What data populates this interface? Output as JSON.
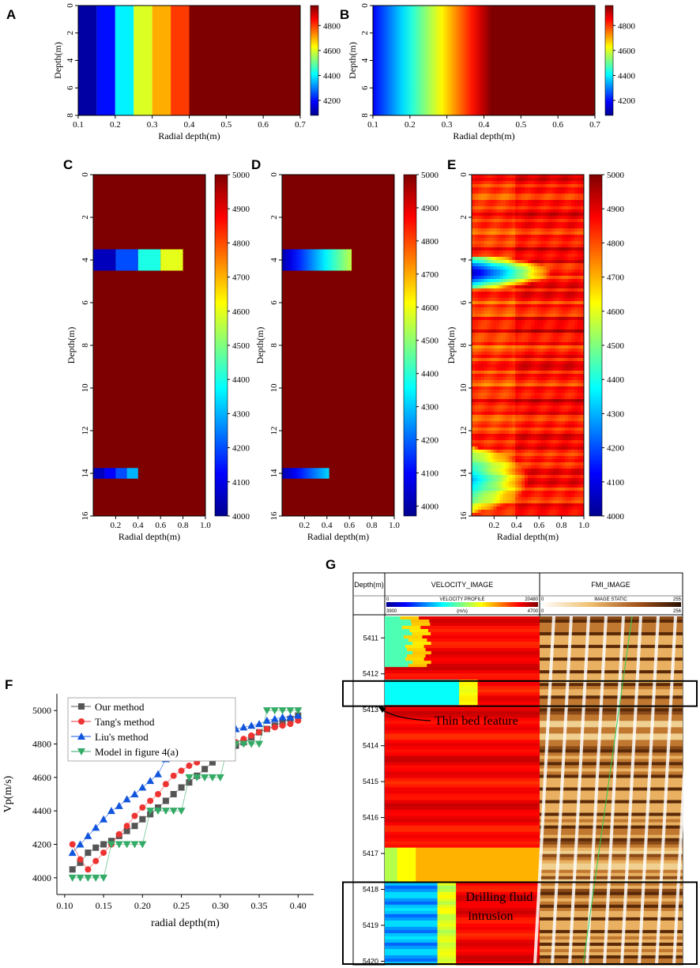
{
  "chart_data": [
    {
      "id": "A",
      "type": "heatmap",
      "panel_label": "A",
      "xlabel": "Radial depth(m)",
      "ylabel": "Depth(m)",
      "xlim": [
        0.1,
        0.7
      ],
      "ylim": [
        0,
        8
      ],
      "xticks": [
        "0.1",
        "0.2",
        "0.3",
        "0.4",
        "0.5",
        "0.6",
        "0.7"
      ],
      "yticks": [
        "0",
        "2",
        "4",
        "6",
        "8"
      ],
      "colorbar_range": [
        4080,
        4960
      ],
      "colorbar_ticks": [
        "4200",
        "4400",
        "4600",
        "4800"
      ],
      "description": "Stepped radial velocity bands",
      "bands": [
        {
          "x0": 0.1,
          "x1": 0.15,
          "value": 4100
        },
        {
          "x0": 0.15,
          "x1": 0.2,
          "value": 4200
        },
        {
          "x0": 0.2,
          "x1": 0.25,
          "value": 4400
        },
        {
          "x0": 0.25,
          "x1": 0.3,
          "value": 4600
        },
        {
          "x0": 0.3,
          "x1": 0.35,
          "value": 4700
        },
        {
          "x0": 0.35,
          "x1": 0.4,
          "value": 4800
        },
        {
          "x0": 0.4,
          "x1": 0.7,
          "value": 4960
        }
      ]
    },
    {
      "id": "B",
      "type": "heatmap",
      "panel_label": "B",
      "xlabel": "Radial depth(m)",
      "ylabel": "Depth(m)",
      "xlim": [
        0.1,
        0.7
      ],
      "ylim": [
        0,
        8
      ],
      "xticks": [
        "0.1",
        "0.2",
        "0.3",
        "0.4",
        "0.5",
        "0.6",
        "0.7"
      ],
      "yticks": [
        "0",
        "2",
        "4",
        "6",
        "8"
      ],
      "colorbar_range": [
        4080,
        4960
      ],
      "colorbar_ticks": [
        "4200",
        "4400",
        "4600",
        "4800"
      ],
      "description": "Smooth radial velocity gradient",
      "gradient_start": 0.1,
      "gradient_end": 0.42
    },
    {
      "id": "C",
      "type": "heatmap",
      "panel_label": "C",
      "xlabel": "Radial depth(m)",
      "ylabel": "Depth(m)",
      "xlim": [
        0,
        1.0
      ],
      "ylim": [
        0,
        16
      ],
      "xticks": [
        "0.2",
        "0.4",
        "0.6",
        "0.8",
        "1.0"
      ],
      "yticks": [
        "0",
        "2",
        "4",
        "6",
        "8",
        "10",
        "12",
        "14",
        "16"
      ],
      "colorbar_range": [
        4000,
        5000
      ],
      "colorbar_ticks": [
        "4000",
        "4100",
        "4200",
        "4300",
        "4400",
        "4500",
        "4600",
        "4700",
        "4800",
        "4900",
        "5000"
      ],
      "blocks": [
        {
          "x0": 0.0,
          "x1": 0.2,
          "y0": 3.5,
          "y1": 4.5,
          "value": 4050
        },
        {
          "x0": 0.2,
          "x1": 0.4,
          "y0": 3.5,
          "y1": 4.5,
          "value": 4200
        },
        {
          "x0": 0.4,
          "x1": 0.6,
          "y0": 3.5,
          "y1": 4.5,
          "value": 4400
        },
        {
          "x0": 0.6,
          "x1": 0.8,
          "y0": 3.5,
          "y1": 4.5,
          "value": 4600
        },
        {
          "x0": 0.0,
          "x1": 0.1,
          "y0": 13.75,
          "y1": 14.25,
          "value": 4050
        },
        {
          "x0": 0.1,
          "x1": 0.2,
          "y0": 13.75,
          "y1": 14.25,
          "value": 4120
        },
        {
          "x0": 0.2,
          "x1": 0.3,
          "y0": 13.75,
          "y1": 14.25,
          "value": 4200
        },
        {
          "x0": 0.3,
          "x1": 0.4,
          "y0": 13.75,
          "y1": 14.25,
          "value": 4300
        }
      ]
    },
    {
      "id": "D",
      "type": "heatmap",
      "panel_label": "D",
      "xlabel": "Radial depth(m)",
      "ylabel": "Depth(m)",
      "xlim": [
        0,
        1.0
      ],
      "ylim": [
        0,
        16
      ],
      "xticks": [
        "0.2",
        "0.4",
        "0.6",
        "0.8",
        "1.0"
      ],
      "yticks": [
        "0",
        "2",
        "4",
        "6",
        "8",
        "10",
        "12",
        "14",
        "16"
      ],
      "colorbar_range": [
        3970,
        5000
      ],
      "colorbar_ticks": [
        "4000",
        "4100",
        "4200",
        "4300",
        "4400",
        "4500",
        "4600",
        "4700",
        "4800",
        "4900",
        "5000"
      ],
      "gradient_bands": [
        {
          "x0": 0.0,
          "x1": 0.62,
          "y0": 3.5,
          "y1": 4.5,
          "v0": 4000,
          "v1": 4550
        },
        {
          "x0": 0.0,
          "x1": 0.42,
          "y0": 13.75,
          "y1": 14.25,
          "v0": 4000,
          "v1": 4320
        }
      ]
    },
    {
      "id": "E",
      "type": "heatmap",
      "panel_label": "E",
      "xlabel": "Radial depth(m)",
      "ylabel": "Depth(m)",
      "xlim": [
        0,
        1.0
      ],
      "ylim": [
        0,
        16
      ],
      "xticks": [
        "0.2",
        "0.4",
        "0.6",
        "0.8",
        "1.0"
      ],
      "yticks": [
        "0",
        "2",
        "4",
        "6",
        "8",
        "10",
        "12",
        "14",
        "16"
      ],
      "colorbar_range": [
        4000,
        5000
      ],
      "colorbar_ticks": [
        "4000",
        "4100",
        "4200",
        "4300",
        "4400",
        "4500",
        "4600",
        "4700",
        "4800",
        "4900",
        "5000"
      ],
      "anomalies": [
        {
          "center_depth": 4.6,
          "half_thickness": 0.8,
          "radial_extent": 0.7,
          "min_value": 4020
        },
        {
          "center_depth": 14.3,
          "half_thickness": 1.5,
          "radial_extent": 0.5,
          "min_value": 4300
        }
      ]
    },
    {
      "id": "F",
      "type": "line",
      "panel_label": "F",
      "xlabel": "radial depth(m)",
      "ylabel": "Vp(m/s)",
      "xlim": [
        0.09,
        0.42
      ],
      "ylim": [
        3900,
        5100
      ],
      "xticks": [
        0.1,
        0.15,
        0.2,
        0.25,
        0.3,
        0.35,
        0.4
      ],
      "xtick_labels": [
        "0.10",
        "0.15",
        "0.20",
        "0.25",
        "0.30",
        "0.35",
        "0.40"
      ],
      "yticks": [
        4000,
        4200,
        4400,
        4600,
        4800,
        5000
      ],
      "ytick_labels": [
        "4000",
        "4200",
        "4400",
        "4600",
        "4800",
        "5000"
      ],
      "x": [
        0.11,
        0.12,
        0.13,
        0.14,
        0.15,
        0.16,
        0.17,
        0.18,
        0.19,
        0.2,
        0.21,
        0.22,
        0.23,
        0.24,
        0.25,
        0.26,
        0.27,
        0.28,
        0.29,
        0.3,
        0.31,
        0.32,
        0.33,
        0.34,
        0.35,
        0.36,
        0.37,
        0.38,
        0.39,
        0.4
      ],
      "series": [
        {
          "name": "Our method",
          "color": "#555555",
          "marker": "square",
          "values": [
            4050,
            4090,
            4150,
            4180,
            4200,
            4220,
            4250,
            4280,
            4310,
            4350,
            4380,
            4420,
            4460,
            4500,
            4540,
            4570,
            4610,
            4650,
            4690,
            4730,
            4760,
            4790,
            4810,
            4840,
            4870,
            4890,
            4910,
            4930,
            4950,
            4970
          ]
        },
        {
          "name": "Tang's method",
          "color": "#ee3333",
          "marker": "circle",
          "values": [
            4200,
            4110,
            4050,
            4100,
            4150,
            4200,
            4260,
            4310,
            4370,
            4420,
            4460,
            4500,
            4560,
            4610,
            4640,
            4670,
            4690,
            4720,
            4740,
            4770,
            4790,
            4810,
            4830,
            4850,
            4870,
            4890,
            4900,
            4910,
            4920,
            4940
          ]
        },
        {
          "name": "Liu's method",
          "color": "#1155dd",
          "marker": "triangle-up",
          "values": [
            4150,
            4200,
            4250,
            4300,
            4350,
            4400,
            4430,
            4470,
            4500,
            4540,
            4580,
            4620,
            4710,
            4740,
            4770,
            4790,
            4810,
            4830,
            4850,
            4870,
            4880,
            4890,
            4900,
            4910,
            4920,
            4940,
            4950,
            4960,
            4960,
            4970
          ]
        },
        {
          "name": "Model in figure 4(a)",
          "color": "#33aa66",
          "marker": "triangle-down",
          "values": [
            4000,
            4000,
            4000,
            4000,
            4000,
            4200,
            4200,
            4200,
            4200,
            4200,
            4400,
            4400,
            4400,
            4400,
            4400,
            4600,
            4600,
            4600,
            4600,
            4600,
            4800,
            4800,
            4800,
            4800,
            4800,
            5000,
            5000,
            5000,
            5000,
            5000
          ]
        }
      ]
    },
    {
      "id": "G",
      "type": "heatmap",
      "panel_label": "G",
      "header": {
        "depth_column": "Depth(m)",
        "velocity_title": "VELOCITY_IMAGE",
        "velocity_profile": "VELOCITY PROFILE",
        "velocity_scale_left": "0",
        "velocity_scale_right": "20480",
        "velocity_min": "3900",
        "velocity_unit": "(m/s)",
        "velocity_max": "4700",
        "fmi_title": "FMI_IMAGE",
        "fmi_static": "IMAGE STATIC",
        "fmi_scale_left": "0",
        "fmi_scale_right": "255",
        "fmi_min": "0",
        "fmi_max": "256"
      },
      "depth_range": [
        5410.4,
        5420.1
      ],
      "depth_ticks": [
        "5411",
        "5412",
        "5413",
        "5414",
        "5415",
        "5416",
        "5417",
        "5418",
        "5419",
        "5420"
      ],
      "annotations": [
        {
          "text": "Thin bed feature",
          "depth_from": 5412.2,
          "depth_to": 5412.9
        },
        {
          "text": "Drilling fluid",
          "line2": "intrusion",
          "depth_from": 5417.8,
          "depth_to": 5420.1
        }
      ],
      "colors": {
        "thin_bed": "#28e0ff",
        "intrusion": "#1a6bff"
      }
    }
  ]
}
